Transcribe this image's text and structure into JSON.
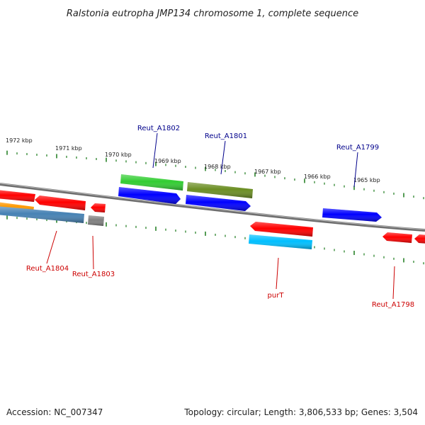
{
  "title": "Ralstonia eutropha JMP134 chromosome 1, complete sequence",
  "footer": {
    "accession": "Accession: NC_007347",
    "summary": "Topology: circular; Length: 3,806,533 bp; Genes: 3,504"
  },
  "colors": {
    "backbone": "#8a8a8a",
    "tick": "#1a7a1a",
    "forward_label": "#00008b",
    "reverse_label": "#cc0000"
  },
  "scale": {
    "tick_labels": [
      "1972 kbp",
      "1971 kbp",
      "1970 kbp",
      "1969 kbp",
      "1968 kbp",
      "1967 kbp",
      "1966 kbp",
      "1965 kbp"
    ]
  },
  "genes": [
    {
      "id": "g1",
      "color": "#ff0000",
      "label": ""
    },
    {
      "id": "g2",
      "color": "#ff0000",
      "label": ""
    },
    {
      "id": "g3",
      "color": "#ff9900",
      "label": ""
    },
    {
      "id": "g4",
      "color": "#4682b4",
      "label": ""
    },
    {
      "id": "g5",
      "color": "#ff0000",
      "label": ""
    },
    {
      "id": "g6",
      "color": "#808080",
      "label": ""
    },
    {
      "id": "g7",
      "color": "#32cd32",
      "label": ""
    },
    {
      "id": "g8",
      "color": "#0000ff",
      "label": ""
    },
    {
      "id": "g9",
      "color": "#6b8e23",
      "label": ""
    },
    {
      "id": "g10",
      "color": "#0000ff",
      "label": ""
    },
    {
      "id": "g11",
      "color": "#ff0000",
      "label": ""
    },
    {
      "id": "g12",
      "color": "#00bfff",
      "label": ""
    },
    {
      "id": "g13",
      "color": "#0000ff",
      "label": ""
    },
    {
      "id": "g14",
      "color": "#ff0000",
      "label": ""
    },
    {
      "id": "g15",
      "color": "#ff0000",
      "label": ""
    }
  ],
  "labels": {
    "reut_a1802": "Reut_A1802",
    "reut_a1801": "Reut_A1801",
    "reut_a1799": "Reut_A1799",
    "reut_a1804": "Reut_A1804",
    "reut_a1803": "Reut_A1803",
    "purt": "purT",
    "reut_a1798": "Reut_A1798"
  }
}
